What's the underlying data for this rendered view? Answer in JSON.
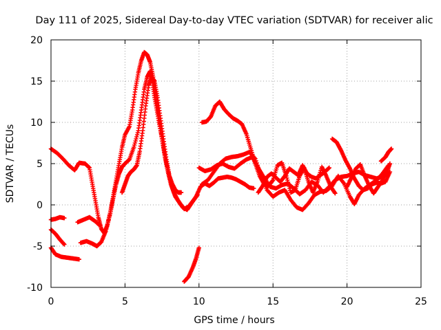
{
  "chart_data": {
    "type": "scatter",
    "title": "Day 111 of 2025, Sidereal Day-to-day VTEC variation (SDTVAR) for receiver alic",
    "xlabel": "GPS time / hours",
    "ylabel": "SDTVAR / TECUs",
    "xlim": [
      0,
      25
    ],
    "ylim": [
      -10,
      20
    ],
    "xticks": [
      0,
      5,
      10,
      15,
      20,
      25
    ],
    "yticks": [
      -10,
      -5,
      0,
      5,
      10,
      15,
      20
    ],
    "grid": true,
    "marker": "+",
    "color": "#ff0000",
    "series": [
      {
        "name": "trace-1",
        "points": [
          [
            0,
            6.8
          ],
          [
            0.4,
            6.3
          ],
          [
            0.8,
            5.6
          ],
          [
            1.2,
            4.8
          ],
          [
            1.6,
            4.2
          ],
          [
            1.9,
            5.1
          ],
          [
            2.3,
            5.0
          ],
          [
            2.6,
            4.5
          ],
          [
            2.8,
            2.5
          ],
          [
            3.0,
            0.5
          ],
          [
            3.2,
            -1.5
          ],
          [
            3.4,
            -2.9
          ],
          [
            3.6,
            -3.4
          ],
          [
            3.8,
            -2.5
          ],
          [
            4.0,
            -1.0
          ],
          [
            4.2,
            0.8
          ],
          [
            4.4,
            2.5
          ],
          [
            4.6,
            3.8
          ],
          [
            4.8,
            4.6
          ],
          [
            5.0,
            5.0
          ],
          [
            5.3,
            5.5
          ],
          [
            5.6,
            7.0
          ],
          [
            5.9,
            9.0
          ],
          [
            6.1,
            11.5
          ],
          [
            6.3,
            14.0
          ],
          [
            6.5,
            15.5
          ],
          [
            6.7,
            16.2
          ],
          [
            6.85,
            15.0
          ],
          [
            7.0,
            13.0
          ],
          [
            7.2,
            11.0
          ],
          [
            7.4,
            9.0
          ],
          [
            7.6,
            7.0
          ],
          [
            7.8,
            5.0
          ],
          [
            8.0,
            3.5
          ],
          [
            8.2,
            2.5
          ],
          [
            8.4,
            1.8
          ],
          [
            8.6,
            1.5
          ],
          [
            8.8,
            1.5
          ]
        ]
      },
      {
        "name": "trace-2",
        "points": [
          [
            0,
            -1.8
          ],
          [
            0.3,
            -1.7
          ],
          [
            0.6,
            -1.5
          ],
          [
            0.9,
            -1.6
          ]
        ]
      },
      {
        "name": "trace-3",
        "points": [
          [
            0,
            -3.0
          ],
          [
            0.3,
            -3.5
          ],
          [
            0.6,
            -4.2
          ],
          [
            0.9,
            -4.8
          ]
        ]
      },
      {
        "name": "trace-4",
        "points": [
          [
            0,
            -5.2
          ],
          [
            0.3,
            -6.0
          ],
          [
            0.7,
            -6.3
          ],
          [
            1.1,
            -6.4
          ],
          [
            1.5,
            -6.5
          ],
          [
            1.9,
            -6.6
          ]
        ]
      },
      {
        "name": "trace-5",
        "points": [
          [
            1.8,
            -2.1
          ],
          [
            2.2,
            -1.8
          ],
          [
            2.6,
            -1.5
          ],
          [
            3.0,
            -2.0
          ],
          [
            3.3,
            -2.5
          ]
        ]
      },
      {
        "name": "trace-6",
        "points": [
          [
            2.0,
            -4.6
          ],
          [
            2.4,
            -4.4
          ],
          [
            2.8,
            -4.7
          ],
          [
            3.1,
            -5.0
          ],
          [
            3.4,
            -4.5
          ],
          [
            3.7,
            -3.2
          ],
          [
            4.0,
            -1.0
          ],
          [
            4.2,
            1.0
          ],
          [
            4.4,
            3.0
          ],
          [
            4.6,
            5.0
          ],
          [
            4.8,
            7.0
          ],
          [
            5.0,
            8.5
          ],
          [
            5.3,
            9.5
          ],
          [
            5.5,
            11.5
          ],
          [
            5.7,
            14.0
          ],
          [
            5.9,
            16.0
          ],
          [
            6.1,
            17.5
          ],
          [
            6.3,
            18.5
          ],
          [
            6.5,
            18.2
          ],
          [
            6.7,
            17.3
          ],
          [
            6.9,
            15.5
          ],
          [
            7.1,
            13.0
          ],
          [
            7.3,
            10.5
          ],
          [
            7.5,
            8.0
          ],
          [
            7.7,
            5.8
          ],
          [
            7.9,
            4.0
          ],
          [
            8.1,
            2.5
          ],
          [
            8.3,
            1.5
          ],
          [
            8.6,
            0.5
          ],
          [
            8.9,
            -0.3
          ],
          [
            9.2,
            -0.6
          ],
          [
            9.5,
            0.2
          ],
          [
            9.8,
            1.0
          ],
          [
            10.1,
            2.2
          ],
          [
            10.4,
            2.6
          ],
          [
            10.7,
            2.3
          ],
          [
            11.0,
            2.7
          ],
          [
            11.3,
            3.2
          ],
          [
            11.6,
            3.3
          ],
          [
            11.9,
            3.4
          ],
          [
            12.2,
            3.3
          ],
          [
            12.5,
            3.1
          ],
          [
            12.8,
            2.8
          ],
          [
            13.1,
            2.5
          ],
          [
            13.4,
            2.1
          ],
          [
            13.7,
            2.0
          ]
        ]
      },
      {
        "name": "trace-7",
        "points": [
          [
            4.8,
            1.5
          ],
          [
            5.0,
            2.5
          ],
          [
            5.2,
            3.5
          ],
          [
            5.4,
            4.0
          ],
          [
            5.6,
            4.3
          ],
          [
            5.8,
            4.8
          ],
          [
            6.0,
            6.5
          ],
          [
            6.2,
            9.0
          ],
          [
            6.4,
            12.0
          ],
          [
            6.6,
            14.5
          ],
          [
            6.8,
            15.5
          ],
          [
            7.0,
            15.0
          ],
          [
            7.2,
            13.0
          ],
          [
            7.4,
            10.5
          ],
          [
            7.6,
            8.0
          ],
          [
            7.8,
            5.5
          ],
          [
            8.0,
            3.5
          ],
          [
            8.2,
            2.0
          ],
          [
            8.4,
            1.0
          ],
          [
            8.7,
            0.2
          ],
          [
            9.0,
            -0.5
          ],
          [
            9.3,
            -0.2
          ],
          [
            9.6,
            0.5
          ],
          [
            9.9,
            1.2
          ]
        ]
      },
      {
        "name": "trace-8",
        "points": [
          [
            9.0,
            -9.3
          ],
          [
            9.3,
            -8.7
          ],
          [
            9.6,
            -7.5
          ],
          [
            9.8,
            -6.5
          ],
          [
            10.0,
            -5.2
          ]
        ]
      },
      {
        "name": "trace-9",
        "points": [
          [
            10.0,
            4.5
          ],
          [
            10.4,
            4.1
          ],
          [
            10.8,
            4.3
          ],
          [
            11.2,
            4.8
          ],
          [
            11.6,
            5.0
          ],
          [
            12.0,
            4.6
          ],
          [
            12.4,
            4.4
          ],
          [
            12.8,
            5.0
          ],
          [
            13.2,
            5.5
          ],
          [
            13.6,
            5.8
          ],
          [
            14.0,
            4.5
          ],
          [
            14.4,
            3.3
          ],
          [
            14.8,
            2.2
          ],
          [
            15.2,
            2.0
          ],
          [
            15.6,
            2.4
          ],
          [
            16.0,
            2.6
          ],
          [
            16.4,
            2.0
          ],
          [
            16.8,
            1.3
          ],
          [
            17.2,
            1.8
          ],
          [
            17.6,
            2.8
          ],
          [
            18.0,
            2.4
          ],
          [
            18.4,
            1.5
          ],
          [
            18.8,
            2.2
          ],
          [
            19.2,
            3.0
          ],
          [
            19.6,
            3.4
          ],
          [
            20.0,
            3.5
          ],
          [
            20.4,
            3.8
          ],
          [
            20.8,
            4.0
          ],
          [
            21.2,
            3.6
          ],
          [
            21.6,
            3.4
          ],
          [
            22.0,
            3.2
          ],
          [
            22.4,
            3.4
          ],
          [
            22.8,
            3.8
          ]
        ]
      },
      {
        "name": "trace-10",
        "points": [
          [
            10.2,
            2.5
          ],
          [
            10.6,
            3.0
          ],
          [
            11.0,
            4.0
          ],
          [
            11.4,
            5.0
          ],
          [
            11.8,
            5.6
          ],
          [
            12.2,
            5.8
          ],
          [
            12.6,
            5.9
          ],
          [
            13.0,
            6.1
          ],
          [
            13.4,
            6.4
          ],
          [
            13.8,
            5.6
          ],
          [
            14.2,
            3.5
          ],
          [
            14.6,
            1.8
          ],
          [
            15.0,
            1.0
          ],
          [
            15.4,
            1.5
          ],
          [
            15.8,
            1.8
          ],
          [
            16.2,
            0.6
          ],
          [
            16.6,
            -0.3
          ],
          [
            17.0,
            -0.6
          ],
          [
            17.4,
            0.2
          ],
          [
            17.8,
            1.2
          ],
          [
            18.2,
            1.6
          ],
          [
            18.6,
            1.7
          ],
          [
            19.0,
            2.3
          ],
          [
            19.4,
            3.5
          ],
          [
            19.8,
            2.6
          ],
          [
            20.2,
            1.0
          ],
          [
            20.5,
            0.1
          ],
          [
            20.8,
            1.2
          ],
          [
            21.2,
            2.0
          ],
          [
            21.6,
            2.5
          ],
          [
            22.0,
            3.0
          ],
          [
            22.4,
            3.8
          ],
          [
            22.8,
            4.8
          ]
        ]
      },
      {
        "name": "trace-11",
        "points": [
          [
            10.2,
            10.0
          ],
          [
            10.5,
            10.1
          ],
          [
            10.8,
            10.7
          ],
          [
            11.1,
            12.0
          ],
          [
            11.4,
            12.5
          ],
          [
            11.7,
            11.6
          ],
          [
            12.0,
            11.0
          ],
          [
            12.3,
            10.5
          ],
          [
            12.6,
            10.2
          ],
          [
            12.9,
            9.8
          ],
          [
            13.2,
            8.6
          ],
          [
            13.5,
            6.8
          ],
          [
            13.8,
            5.0
          ],
          [
            14.1,
            3.5
          ],
          [
            14.4,
            2.5
          ],
          [
            14.7,
            2.3
          ],
          [
            15.0,
            3.0
          ],
          [
            15.3,
            4.8
          ],
          [
            15.6,
            5.1
          ],
          [
            15.9,
            3.5
          ],
          [
            16.2,
            1.5
          ],
          [
            16.5,
            1.8
          ],
          [
            16.8,
            3.5
          ],
          [
            17.1,
            4.5
          ],
          [
            17.4,
            2.8
          ],
          [
            17.7,
            1.5
          ],
          [
            18.0,
            2.8
          ],
          [
            18.3,
            4.6
          ],
          [
            18.6,
            3.5
          ],
          [
            18.9,
            2.2
          ],
          [
            19.2,
            1.4
          ]
        ]
      },
      {
        "name": "trace-12",
        "points": [
          [
            14.0,
            1.5
          ],
          [
            14.3,
            2.3
          ],
          [
            14.6,
            3.4
          ],
          [
            14.9,
            3.8
          ],
          [
            15.2,
            3.3
          ],
          [
            15.5,
            2.8
          ],
          [
            15.8,
            3.5
          ],
          [
            16.1,
            4.4
          ],
          [
            16.4,
            4.0
          ],
          [
            16.7,
            3.6
          ],
          [
            17.0,
            4.8
          ],
          [
            17.3,
            3.8
          ],
          [
            17.6,
            3.4
          ],
          [
            17.9,
            3.2
          ],
          [
            18.2,
            3.6
          ],
          [
            18.5,
            4.0
          ],
          [
            18.8,
            4.5
          ]
        ]
      },
      {
        "name": "trace-13",
        "points": [
          [
            19.0,
            8.0
          ],
          [
            19.3,
            7.6
          ],
          [
            19.6,
            6.6
          ],
          [
            19.9,
            5.4
          ],
          [
            20.2,
            4.4
          ],
          [
            20.5,
            3.2
          ],
          [
            20.8,
            2.3
          ],
          [
            21.1,
            1.8
          ],
          [
            21.4,
            2.0
          ],
          [
            21.7,
            2.5
          ],
          [
            22.0,
            2.7
          ],
          [
            22.3,
            2.6
          ],
          [
            22.6,
            2.8
          ],
          [
            22.9,
            4.0
          ]
        ]
      },
      {
        "name": "trace-14",
        "points": [
          [
            20.0,
            2.2
          ],
          [
            20.3,
            3.3
          ],
          [
            20.6,
            4.4
          ],
          [
            20.9,
            4.9
          ],
          [
            21.2,
            3.5
          ],
          [
            21.5,
            2.3
          ],
          [
            21.8,
            1.4
          ],
          [
            22.1,
            2.2
          ],
          [
            22.4,
            3.0
          ],
          [
            22.7,
            4.0
          ],
          [
            22.9,
            5.0
          ]
        ]
      },
      {
        "name": "trace-15",
        "points": [
          [
            22.3,
            5.3
          ],
          [
            22.6,
            5.8
          ],
          [
            22.8,
            6.4
          ],
          [
            23.0,
            6.8
          ]
        ]
      }
    ]
  }
}
